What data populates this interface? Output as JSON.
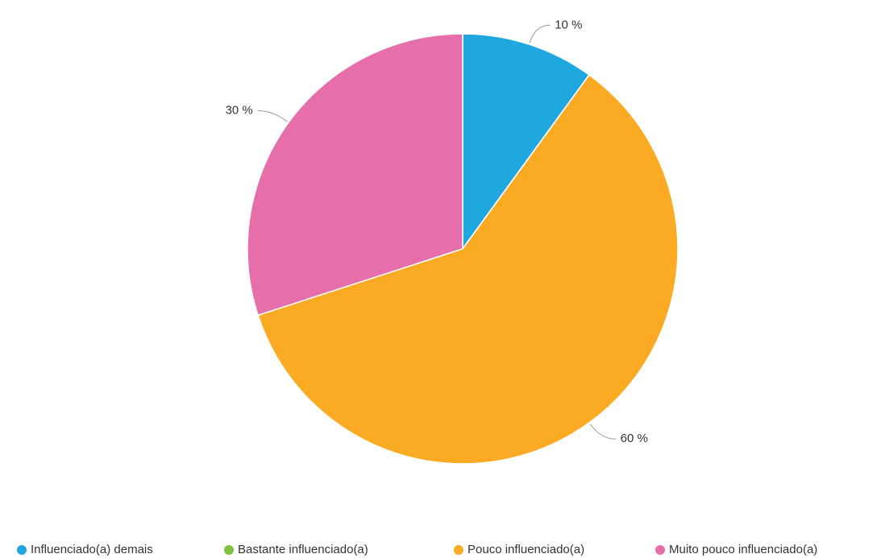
{
  "chart_data": {
    "type": "pie",
    "categories": [
      "Influenciado(a) demais",
      "Bastante influenciado(a)",
      "Pouco influenciado(a)",
      "Muito pouco influenciado(a)"
    ],
    "values": [
      10,
      0,
      60,
      30
    ],
    "value_labels": [
      "10 %",
      null,
      "60 %",
      "30 %"
    ],
    "colors": [
      "#1fa8e0",
      "#7dc242",
      "#fbab23",
      "#e66eab"
    ],
    "legend": "bottom"
  }
}
